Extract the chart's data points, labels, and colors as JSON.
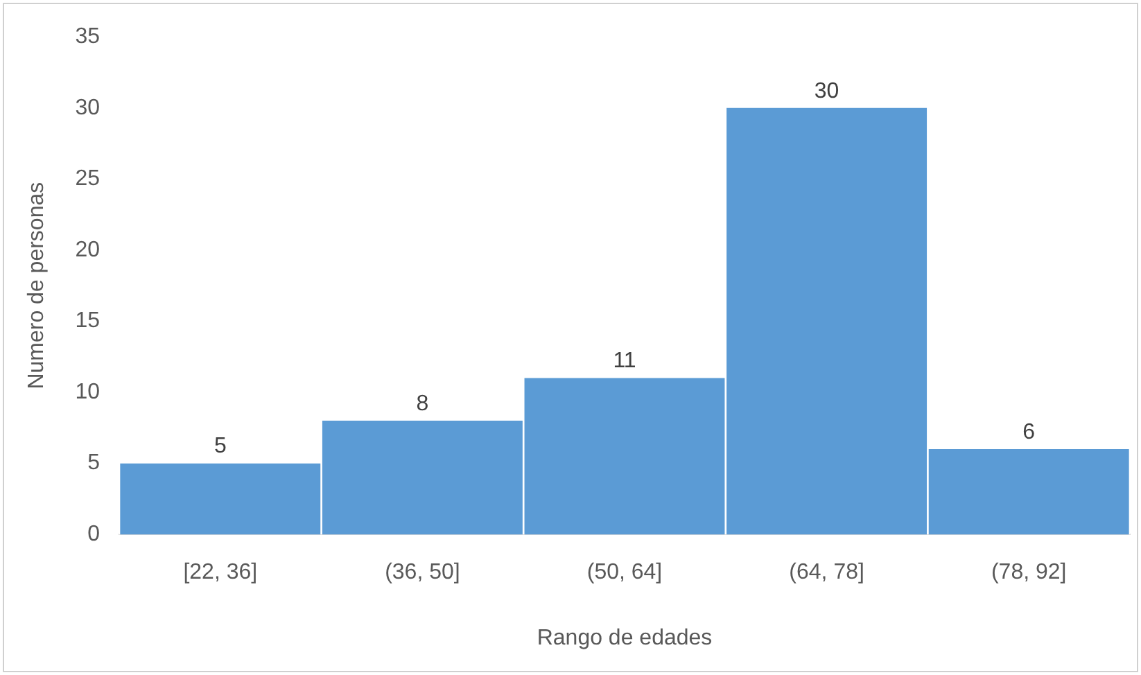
{
  "chart_data": {
    "type": "bar",
    "xlabel": "Rango de edades",
    "ylabel": "Numero de personas",
    "categories": [
      "[22, 36]",
      "(36, 50]",
      "(50, 64]",
      "(64, 78]",
      "(78, 92]"
    ],
    "values": [
      5,
      8,
      11,
      30,
      6
    ],
    "color": "#5b9bd5",
    "ylim": [
      0,
      35
    ],
    "yticks": [
      0,
      5,
      10,
      15,
      20,
      25,
      30,
      35
    ],
    "grid": false,
    "legend": false,
    "data_labels": true
  }
}
